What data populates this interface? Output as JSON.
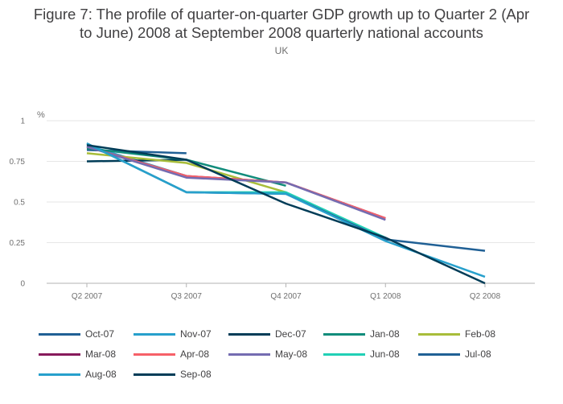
{
  "chart_data": {
    "type": "line",
    "title": "Figure 7: The profile of quarter-on-quarter GDP growth up to Quarter 2 (Apr\nto June) 2008 at September 2008 quarterly national accounts",
    "subtitle": "UK",
    "ylabel": "%",
    "xlabel": "",
    "categories": [
      "Q2 2007",
      "Q3 2007",
      "Q4 2007",
      "Q1 2008",
      "Q2 2008"
    ],
    "ylim": [
      0,
      1
    ],
    "yticks": [
      {
        "value": 0,
        "label": "0"
      },
      {
        "value": 0.25,
        "label": "0.25"
      },
      {
        "value": 0.5,
        "label": "0.5"
      },
      {
        "value": 0.75,
        "label": "0.75"
      },
      {
        "value": 1,
        "label": "1"
      }
    ],
    "grid": true,
    "legend_position": "bottom",
    "series": [
      {
        "name": "Oct-07",
        "color": "#206095",
        "values": [
          0.82,
          0.8,
          null,
          null,
          null
        ]
      },
      {
        "name": "Nov-07",
        "color": "#27a0cc",
        "values": [
          0.85,
          0.66,
          null,
          null,
          null
        ]
      },
      {
        "name": "Dec-07",
        "color": "#003c57",
        "values": [
          0.75,
          0.76,
          null,
          null,
          null
        ]
      },
      {
        "name": "Jan-08",
        "color": "#118c7b",
        "values": [
          0.83,
          0.76,
          0.6,
          null,
          null
        ]
      },
      {
        "name": "Feb-08",
        "color": "#a8bd3a",
        "values": [
          0.8,
          0.74,
          0.56,
          null,
          null
        ]
      },
      {
        "name": "Mar-08",
        "color": "#871a5b",
        "values": [
          0.84,
          0.66,
          0.62,
          0.4,
          null
        ]
      },
      {
        "name": "Apr-08",
        "color": "#f66068",
        "values": [
          0.84,
          0.66,
          0.62,
          0.4,
          null
        ]
      },
      {
        "name": "May-08",
        "color": "#746cb1",
        "values": [
          0.84,
          0.65,
          0.62,
          0.39,
          null
        ]
      },
      {
        "name": "Jun-08",
        "color": "#22d0b6",
        "values": [
          0.86,
          0.56,
          0.56,
          0.28,
          null
        ]
      },
      {
        "name": "Jul-08",
        "color": "#206095",
        "values": [
          0.86,
          0.56,
          0.55,
          0.27,
          0.2
        ]
      },
      {
        "name": "Aug-08",
        "color": "#27a0cc",
        "values": [
          0.86,
          0.56,
          0.55,
          0.26,
          0.04
        ]
      },
      {
        "name": "Sep-08",
        "color": "#003c57",
        "values": [
          0.85,
          0.76,
          0.49,
          0.28,
          0.0
        ]
      }
    ]
  }
}
